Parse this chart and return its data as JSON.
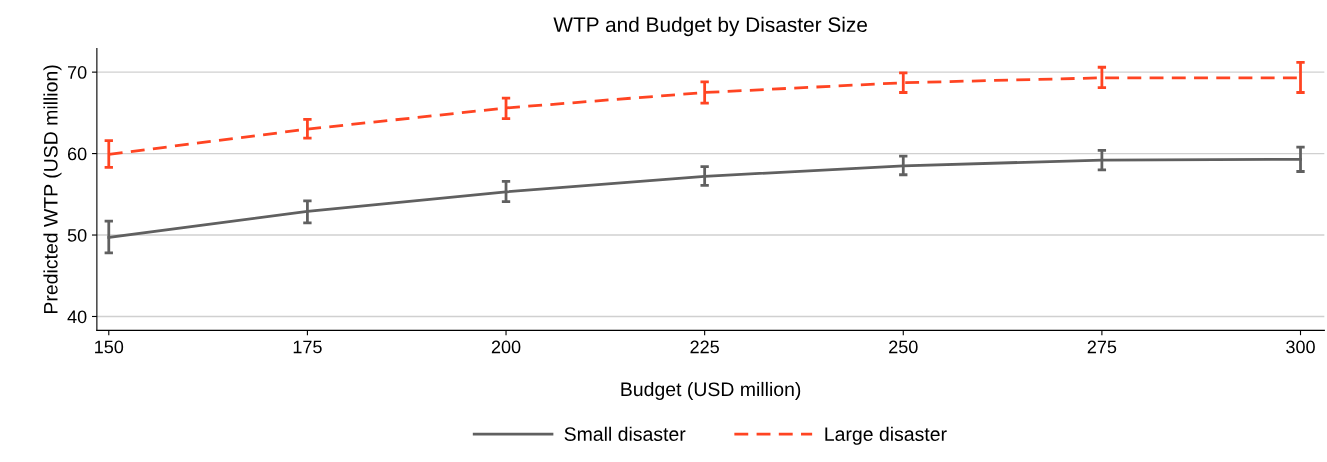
{
  "chart_data": {
    "type": "line",
    "title": "WTP and Budget by Disaster Size",
    "xlabel": "Budget (USD million)",
    "ylabel": "Predicted WTP (USD million)",
    "x": [
      150,
      175,
      200,
      225,
      250,
      275,
      300
    ],
    "series": [
      {
        "name": "Small disaster",
        "color": "#606060",
        "line_style": "solid",
        "values": [
          49.7,
          52.9,
          55.3,
          57.2,
          58.5,
          59.2,
          59.3
        ],
        "errors": [
          [
            47.8,
            51.7
          ],
          [
            51.5,
            54.2
          ],
          [
            54.1,
            56.6
          ],
          [
            56.1,
            58.4
          ],
          [
            57.4,
            59.7
          ],
          [
            58.0,
            60.4
          ],
          [
            57.8,
            60.8
          ]
        ]
      },
      {
        "name": "Large disaster",
        "color": "#ff4422",
        "line_style": "dashed",
        "values": [
          59.9,
          63.0,
          65.6,
          67.5,
          68.7,
          69.3,
          69.3
        ],
        "errors": [
          [
            58.3,
            61.6
          ],
          [
            61.9,
            64.2
          ],
          [
            64.3,
            66.8
          ],
          [
            66.2,
            68.8
          ],
          [
            67.5,
            69.9
          ],
          [
            68.1,
            70.6
          ],
          [
            67.5,
            71.2
          ]
        ]
      }
    ],
    "xlim": [
      148.5,
      303
    ],
    "xticks": [
      150,
      175,
      200,
      225,
      250,
      275,
      300
    ],
    "ylim": [
      38.3,
      72.9
    ],
    "yticks": [
      40,
      50,
      60,
      70
    ],
    "grid": "y",
    "legend": "bottom",
    "marker": "none"
  }
}
